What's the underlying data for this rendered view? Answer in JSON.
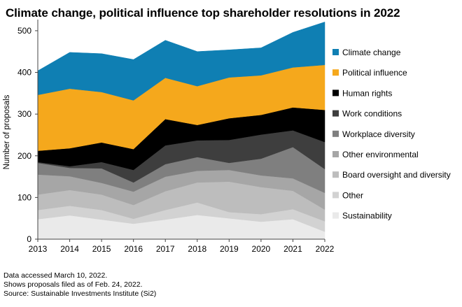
{
  "chart_data": {
    "type": "area",
    "stacked": true,
    "title": "Climate change, political influence top shareholder resolutions in 2022",
    "xlabel": "",
    "ylabel": "Number of proposals",
    "x": [
      2013,
      2014,
      2015,
      2016,
      2017,
      2018,
      2019,
      2020,
      2021,
      2022
    ],
    "ylim": [
      0,
      520
    ],
    "yticks": [
      0,
      100,
      200,
      300,
      400,
      500
    ],
    "grid": false,
    "legend_position": "right",
    "series": [
      {
        "name": "Sustainability",
        "color": "#eaeaea",
        "values": [
          48,
          57,
          47,
          37,
          47,
          58,
          50,
          42,
          48,
          18
        ]
      },
      {
        "name": "Other",
        "color": "#d2d2d2",
        "values": [
          22,
          23,
          23,
          12,
          23,
          30,
          15,
          18,
          24,
          25
        ]
      },
      {
        "name": "Board oversight and diversity",
        "color": "#bdbdbd",
        "values": [
          37,
          38,
          37,
          33,
          45,
          48,
          73,
          65,
          44,
          28
        ]
      },
      {
        "name": "Other environmental",
        "color": "#a6a6a6",
        "values": [
          48,
          33,
          28,
          32,
          35,
          28,
          28,
          28,
          30,
          40
        ]
      },
      {
        "name": "Workplace diversity",
        "color": "#7f7f7f",
        "values": [
          28,
          20,
          35,
          22,
          30,
          33,
          17,
          40,
          75,
          57
        ]
      },
      {
        "name": "Work conditions",
        "color": "#3e3e3e",
        "values": [
          2,
          4,
          15,
          30,
          45,
          40,
          55,
          58,
          40,
          65
        ]
      },
      {
        "name": "Human rights",
        "color": "#000000",
        "values": [
          27,
          43,
          47,
          50,
          63,
          37,
          52,
          47,
          55,
          77
        ]
      },
      {
        "name": "Political influence",
        "color": "#f5a81c",
        "values": [
          134,
          143,
          121,
          117,
          99,
          93,
          98,
          95,
          96,
          108
        ]
      },
      {
        "name": "Climate change",
        "color": "#0f7fb3",
        "values": [
          58,
          87,
          92,
          98,
          90,
          83,
          66,
          66,
          84,
          103
        ]
      }
    ],
    "notes": [
      "Data accessed March 10, 2022.",
      "Shows proposals filed as of Feb. 24, 2022.",
      "Source: Sustainable Investments Institute (Si2)"
    ]
  }
}
